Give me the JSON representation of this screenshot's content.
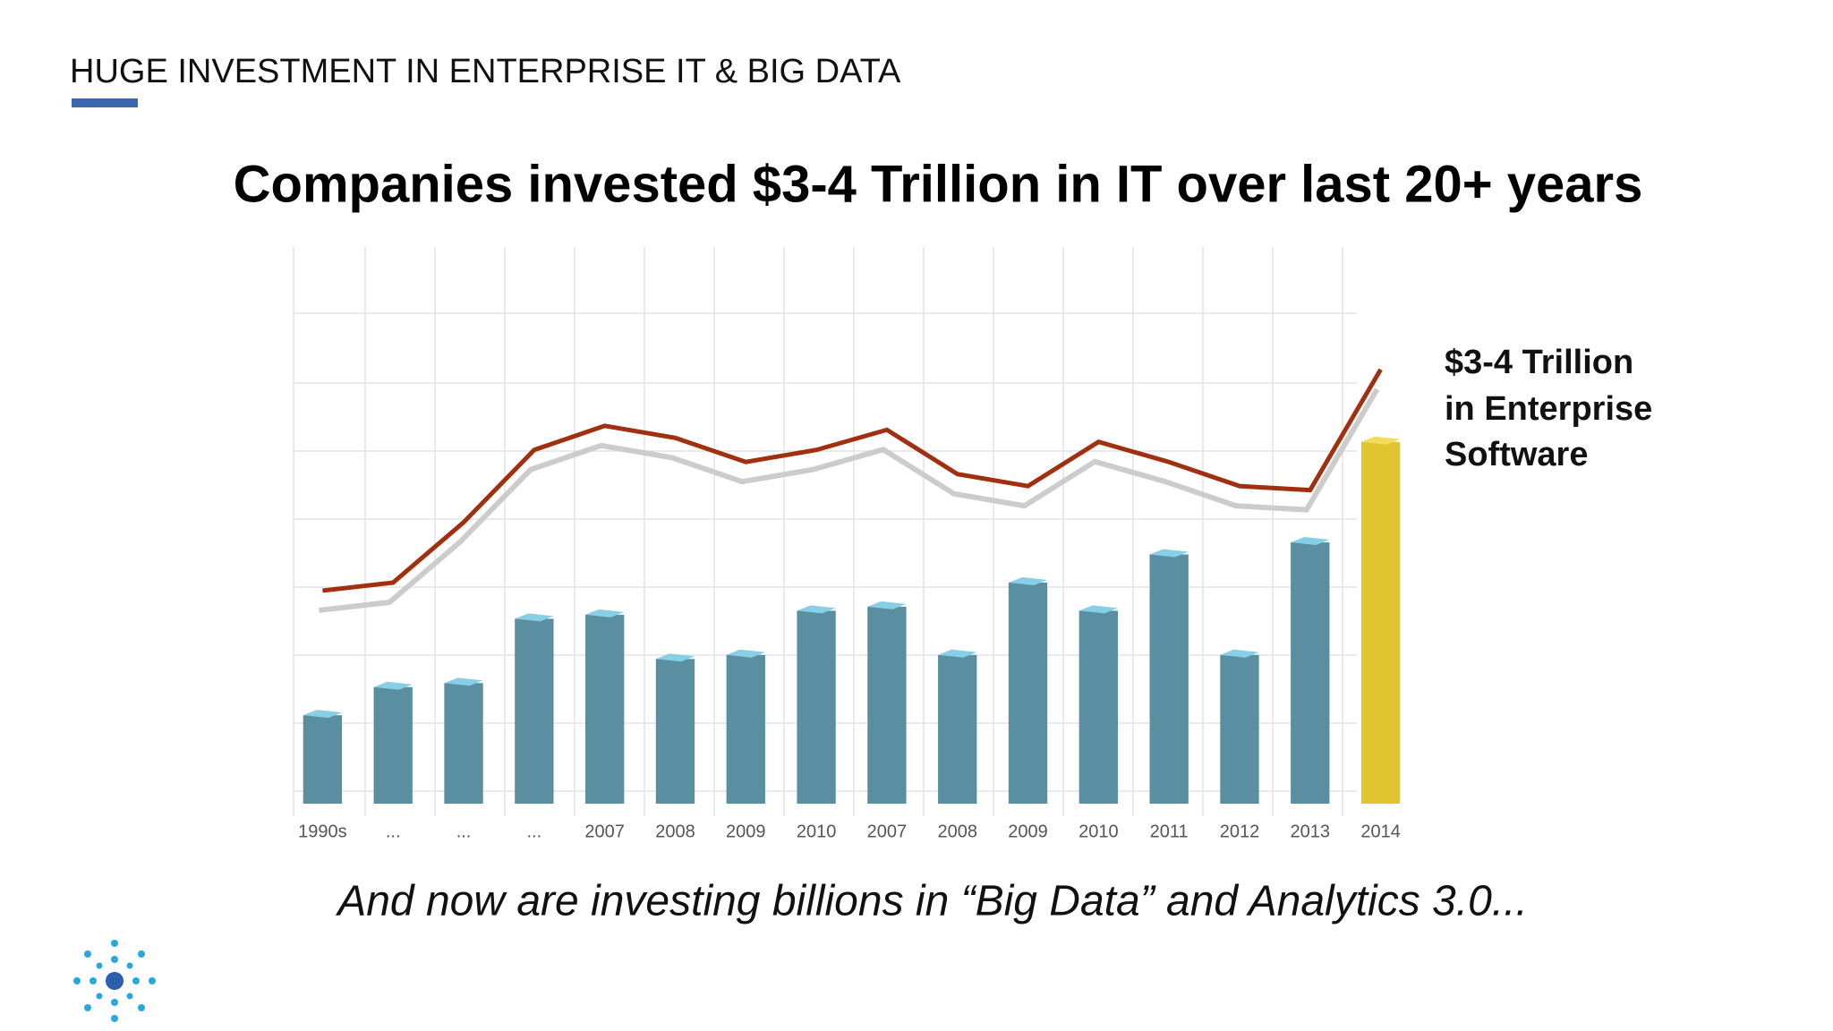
{
  "header": "HUGE INVESTMENT IN ENTERPRISE IT & BIG DATA",
  "chart_data": {
    "type": "bar",
    "title": "Companies invested $3-4 Trillion in IT over last 20+ years",
    "subtitle": "And now are investing billions in “Big Data” and Analytics 3.0...",
    "annotation": [
      "$3-4 Trillion",
      "in Enterprise",
      "Software"
    ],
    "categories": [
      "1990s",
      "...",
      "...",
      "...",
      "2007",
      "2008",
      "2009",
      "2010",
      "2007",
      "2008",
      "2009",
      "2010",
      "2011",
      "2012",
      "2013",
      "2014"
    ],
    "values": [
      22,
      29,
      30,
      46,
      47,
      36,
      37,
      48,
      49,
      37,
      55,
      48,
      62,
      37,
      65,
      90
    ],
    "colors": [
      "#5a8fa2",
      "#5a8fa2",
      "#5a8fa2",
      "#5a8fa2",
      "#5a8fa2",
      "#5a8fa2",
      "#5a8fa2",
      "#5a8fa2",
      "#5a8fa2",
      "#5a8fa2",
      "#5a8fa2",
      "#5a8fa2",
      "#5a8fa2",
      "#5a8fa2",
      "#5a8fa2",
      "#e2c431"
    ],
    "line": {
      "color": "#a0300f",
      "values": [
        53,
        55,
        70,
        88,
        94,
        91,
        85,
        88,
        93,
        82,
        79,
        90,
        85,
        79,
        78,
        108
      ]
    },
    "ylim": [
      0,
      120
    ],
    "grid": true
  }
}
